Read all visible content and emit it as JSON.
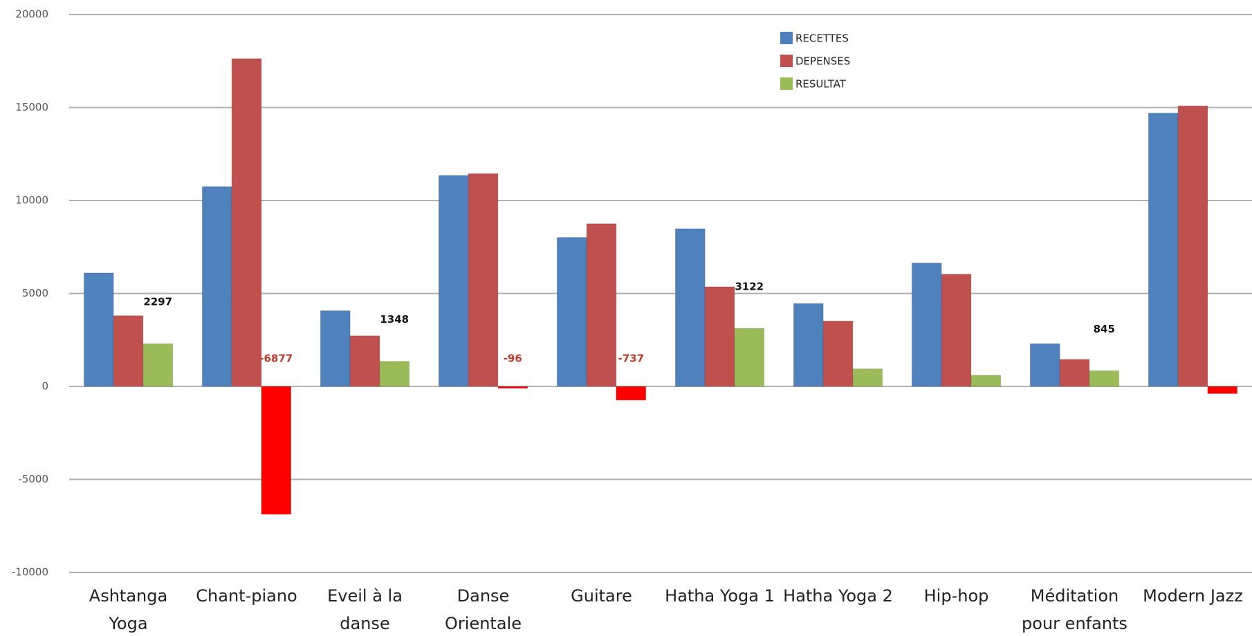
{
  "chart_data": {
    "type": "bar",
    "categories": [
      "Ashtanga Yoga",
      "Chant-piano",
      "Eveil à la danse",
      "Danse Orientale",
      "Guitare",
      "Hatha Yoga 1",
      "Hatha Yoga 2",
      "Hip-hop",
      "Méditation pour enfants",
      "Modern Jazz"
    ],
    "series": [
      {
        "name": "RECETTES",
        "color": "#4f81bd",
        "values": [
          6100,
          10750,
          4070,
          11350,
          8010,
          8480,
          4460,
          6640,
          2300,
          14700
        ]
      },
      {
        "name": "DEPENSES",
        "color": "#c0504d",
        "values": [
          3803,
          17627,
          2722,
          11446,
          8747,
          5358,
          3517,
          6040,
          1455,
          15086
        ]
      },
      {
        "name": "RESULTAT",
        "color": "#9bbb59",
        "negative_color": "#ff0000",
        "values": [
          2297,
          -6877,
          1348,
          -96,
          -737,
          3122,
          943,
          600,
          845,
          -386
        ],
        "value_labels": [
          "2297",
          "-6877",
          "1348",
          "-96",
          "-737",
          "3122",
          null,
          null,
          "845",
          null
        ]
      }
    ],
    "ylim": [
      -10000,
      20000
    ],
    "yticks": [
      -10000,
      -5000,
      0,
      5000,
      10000,
      15000,
      20000
    ],
    "grid": true,
    "legend": "top-right"
  }
}
